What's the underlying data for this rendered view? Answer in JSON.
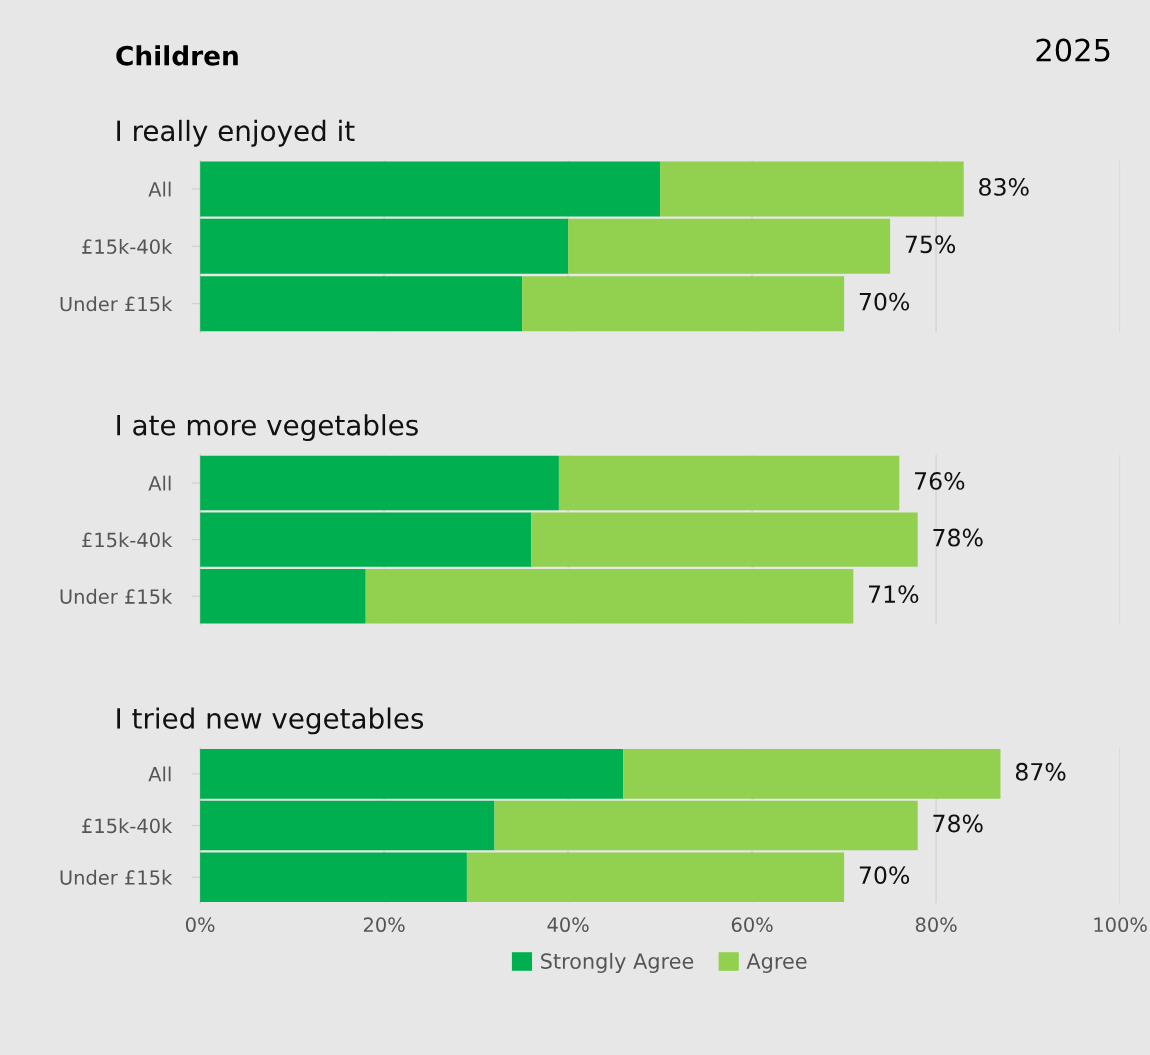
{
  "chart_data": [
    {
      "type": "bar",
      "orientation": "horizontal",
      "stacked": true,
      "title": "I really enjoyed it",
      "annotations": [
        "Children",
        "2025"
      ],
      "categories": [
        "All",
        "£15k-40k",
        "Under £15k"
      ],
      "series": [
        {
          "color": "#00b050",
          "values": [
            50,
            40,
            35
          ]
        },
        {
          "color": "#92d050",
          "values": [
            33,
            35,
            35
          ]
        }
      ],
      "totals": [
        "83%",
        "75%",
        "70%"
      ],
      "xlim": [
        0,
        100
      ],
      "grid": "x",
      "tick_labels": "y"
    },
    {
      "type": "bar",
      "orientation": "horizontal",
      "stacked": true,
      "title": "I ate more vegetables",
      "categories": [
        "All",
        "£15k-40k",
        "Under £15k"
      ],
      "series": [
        {
          "color": "#00b050",
          "values": [
            39,
            36,
            18
          ]
        },
        {
          "color": "#92d050",
          "values": [
            37,
            42,
            53
          ]
        }
      ],
      "totals": [
        "76%",
        "78%",
        "71%"
      ],
      "xlim": [
        0,
        100
      ],
      "grid": "x",
      "tick_labels": "y"
    },
    {
      "type": "bar",
      "orientation": "horizontal",
      "stacked": true,
      "title": "I tried new vegetables",
      "categories": [
        "All",
        "£15k-40k",
        "Under £15k"
      ],
      "series": [
        {
          "name": "Strongly Agree",
          "color": "#00b050",
          "values": [
            46,
            32,
            29
          ]
        },
        {
          "name": "Agree",
          "color": "#92d050",
          "values": [
            41,
            46,
            41
          ]
        }
      ],
      "totals": [
        "87%",
        "78%",
        "70%"
      ],
      "xlim": [
        0,
        100
      ],
      "xticks": [
        {
          "value": 0,
          "label": "0%"
        },
        {
          "value": 20,
          "label": "20%"
        },
        {
          "value": 40,
          "label": "40%"
        },
        {
          "value": 60,
          "label": "60%"
        },
        {
          "value": 80,
          "label": "80%"
        },
        {
          "value": 100,
          "label": "100%"
        }
      ],
      "grid": "x",
      "legend": "bottom"
    }
  ]
}
